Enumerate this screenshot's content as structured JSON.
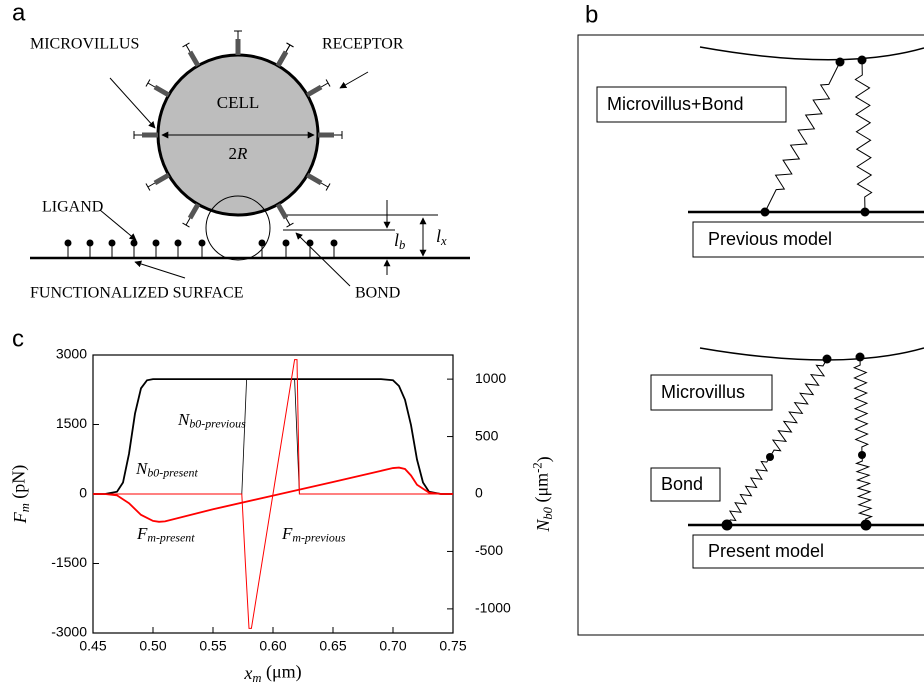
{
  "panel_a": {
    "letter": "a",
    "microvillus": "MICROVILLUS",
    "receptor": "RECEPTOR",
    "cell": "CELL",
    "diameter": "2R",
    "ligand": "LIGAND",
    "surface": "FUNCTIONALIZED SURFACE",
    "bond": "BOND",
    "lb": "lb",
    "lx": "lx"
  },
  "panel_b": {
    "letter": "b",
    "previous_label": "Microvillus+Bond",
    "previous_model": "Previous model",
    "microvillus": "Microvillus",
    "bond": "Bond",
    "present_model": "Present model"
  },
  "chart_data": {
    "type": "line",
    "letter": "c",
    "x_label": "xm (μm)",
    "y_label": "Fm (pN)",
    "y2_label": "Nb0 (μm-2)",
    "xlim": [
      0.45,
      0.75
    ],
    "xticks": [
      0.45,
      {
        "value": 0.5,
        "label": "0.50"
      },
      0.55,
      {
        "value": 0.6,
        "label": "0.60"
      },
      0.65,
      {
        "value": 0.7,
        "label": "0.70"
      },
      0.75
    ],
    "ylim": [
      -3000,
      3000
    ],
    "yticks": [
      -3000,
      -1500,
      0,
      1500,
      3000
    ],
    "y2lim": [
      -1210,
      1210
    ],
    "y2ticks": [
      -1000,
      -500,
      0,
      500,
      1000
    ],
    "series": [
      {
        "name": "Nb0-previous",
        "color": "#000000",
        "axis": "y2",
        "x": [
          0.45,
          0.574,
          0.576,
          0.578,
          0.618,
          0.62,
          0.622,
          0.75
        ],
        "values": [
          0,
          0,
          500,
          1000,
          1000,
          500,
          0,
          0
        ]
      },
      {
        "name": "Nb0-present",
        "color": "#000000",
        "axis": "y2",
        "x": [
          0.45,
          0.46,
          0.47,
          0.475,
          0.48,
          0.485,
          0.49,
          0.495,
          0.5,
          0.55,
          0.6,
          0.65,
          0.69,
          0.7,
          0.705,
          0.71,
          0.715,
          0.72,
          0.725,
          0.73,
          0.74,
          0.75
        ],
        "values": [
          0,
          0,
          20,
          100,
          350,
          700,
          920,
          990,
          1000,
          1000,
          1000,
          1000,
          1000,
          990,
          940,
          820,
          600,
          300,
          100,
          20,
          0,
          0
        ]
      },
      {
        "name": "Fm-present",
        "color": "#ff0000",
        "x": [
          0.45,
          0.46,
          0.47,
          0.48,
          0.49,
          0.5,
          0.505,
          0.51,
          0.55,
          0.6,
          0.65,
          0.69,
          0.7,
          0.705,
          0.71,
          0.715,
          0.72,
          0.73,
          0.74,
          0.75
        ],
        "values": [
          0,
          0,
          -30,
          -200,
          -450,
          -580,
          -600,
          -590,
          -330,
          -35,
          260,
          500,
          560,
          570,
          540,
          400,
          200,
          30,
          0,
          0
        ]
      },
      {
        "name": "Fm-previous",
        "color": "#ff0000",
        "x": [
          0.45,
          0.574,
          0.577,
          0.58,
          0.582,
          0.6,
          0.618,
          0.62,
          0.622,
          0.75
        ],
        "values": [
          0,
          0,
          -1500,
          -2900,
          -2900,
          0,
          2900,
          2900,
          0,
          0
        ]
      }
    ]
  }
}
